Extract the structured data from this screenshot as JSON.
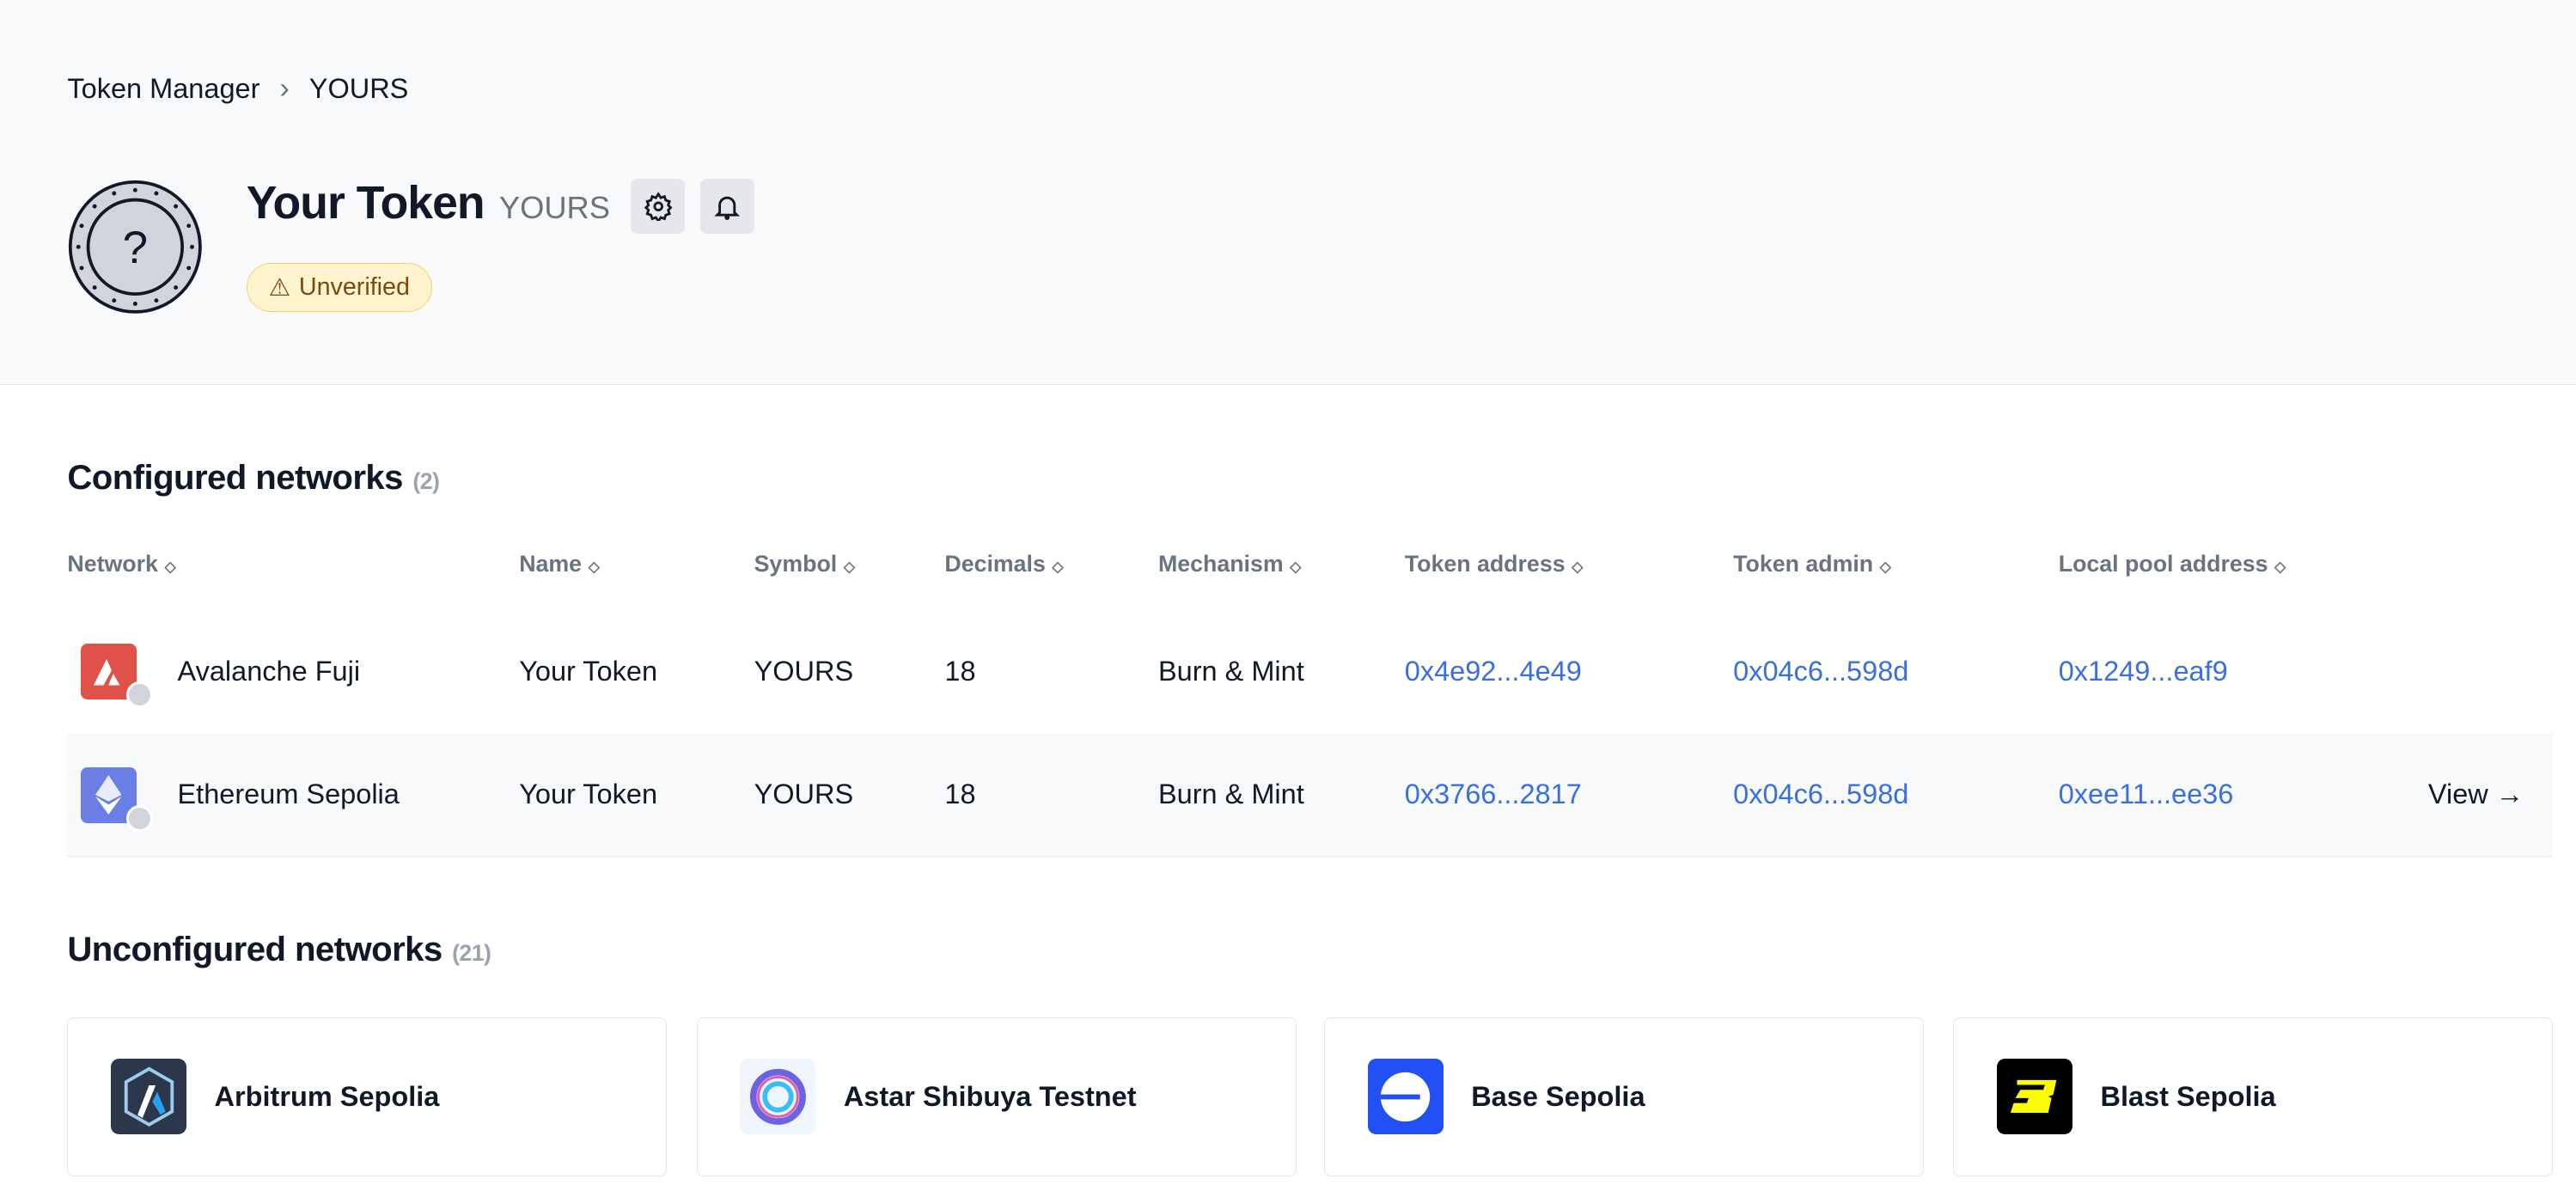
{
  "breadcrumb": {
    "root": "Token Manager",
    "current": "YOURS"
  },
  "token": {
    "name": "Your Token",
    "symbol": "YOURS",
    "status": "Unverified"
  },
  "configured": {
    "title": "Configured networks",
    "count": "(2)",
    "columns": [
      "Network",
      "Name",
      "Symbol",
      "Decimals",
      "Mechanism",
      "Token address",
      "Token admin",
      "Local pool address"
    ],
    "rows": [
      {
        "network": "Avalanche Fuji",
        "name": "Your Token",
        "symbol": "YOURS",
        "decimals": "18",
        "mechanism": "Burn & Mint",
        "token_address": "0x4e92...4e49",
        "token_admin": "0x04c6...598d",
        "pool": "0x1249...eaf9",
        "icon_color": "#e0514a"
      },
      {
        "network": "Ethereum Sepolia",
        "name": "Your Token",
        "symbol": "YOURS",
        "decimals": "18",
        "mechanism": "Burn & Mint",
        "token_address": "0x3766...2817",
        "token_admin": "0x04c6...598d",
        "pool": "0xee11...ee36",
        "view": "View →",
        "icon_color": "#6a7fe6"
      }
    ]
  },
  "unconfigured": {
    "title": "Unconfigured networks",
    "count": "(21)",
    "cards": [
      {
        "label": "Arbitrum Sepolia",
        "icon_color": "#2d374b"
      },
      {
        "label": "Astar Shibuya Testnet",
        "icon_color": "#eef5fc"
      },
      {
        "label": "Base Sepolia",
        "icon_color": "#2151f5"
      },
      {
        "label": "Blast Sepolia",
        "icon_color": "#000000"
      }
    ]
  },
  "colors": {
    "link": "#3a6fe0",
    "header_bg": "#f8f9fb"
  }
}
